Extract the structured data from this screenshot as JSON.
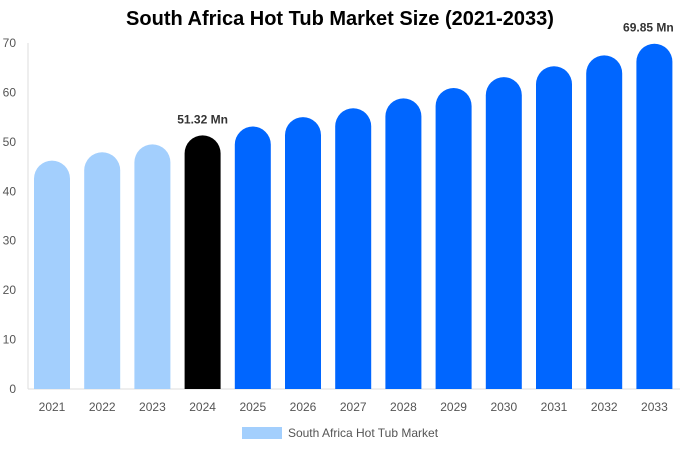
{
  "chart_data": {
    "type": "bar",
    "title": "South Africa Hot Tub Market Size (2021-2033)",
    "categories": [
      "2021",
      "2022",
      "2023",
      "2024",
      "2025",
      "2026",
      "2027",
      "2028",
      "2029",
      "2030",
      "2031",
      "2032",
      "2033"
    ],
    "series": [
      {
        "name": "South Africa Hot Tub Market",
        "values": [
          46.2,
          47.9,
          49.5,
          51.32,
          53.1,
          55.0,
          56.8,
          58.8,
          60.9,
          63.1,
          65.3,
          67.5,
          69.85
        ]
      }
    ],
    "data_labels": {
      "3": "51.32 Mn",
      "12": "69.85 Mn"
    },
    "ylim": [
      0,
      70
    ],
    "yticks": [
      0,
      10,
      20,
      30,
      40,
      50,
      60,
      70
    ],
    "grid": false,
    "legend_position": "bottom",
    "colors": {
      "historical": "#a3cffd",
      "current": "#000000",
      "forecast": "#0066ff"
    },
    "xlabel": "",
    "ylabel": ""
  }
}
